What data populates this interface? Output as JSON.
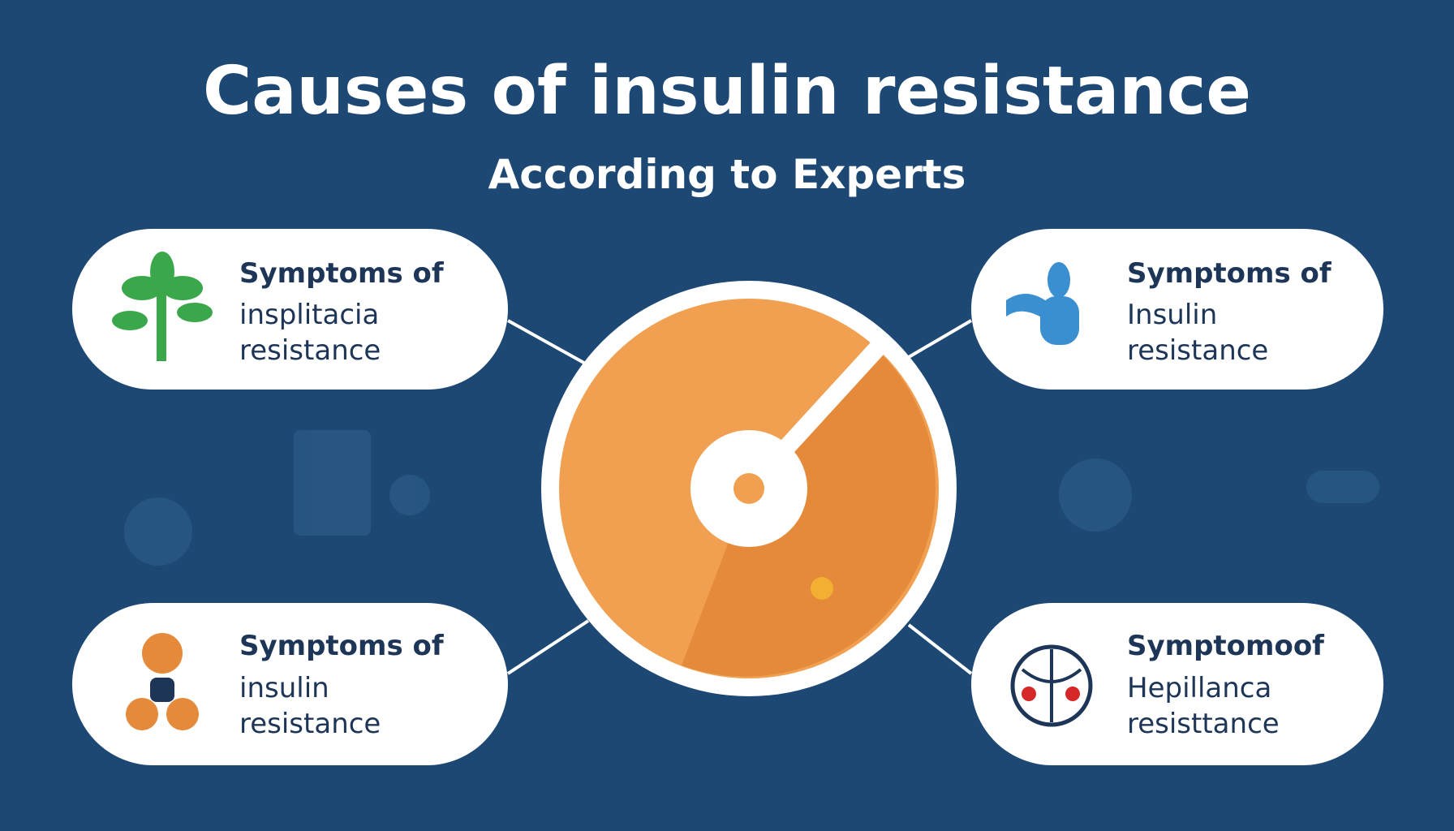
{
  "header": {
    "title": "Causes of insulin resistance",
    "subtitle": "According to Experts"
  },
  "cards": [
    {
      "heading": "Symptoms of",
      "lines": [
        "insplitacia",
        "resistance"
      ]
    },
    {
      "heading": "Symptoms of",
      "lines": [
        "Insulin",
        "resistance"
      ]
    },
    {
      "heading": "Symptoms of",
      "lines": [
        "insulin",
        "resistance"
      ]
    },
    {
      "heading": "Symptomoof",
      "lines": [
        "Hepillanca",
        "resisttance"
      ]
    }
  ]
}
